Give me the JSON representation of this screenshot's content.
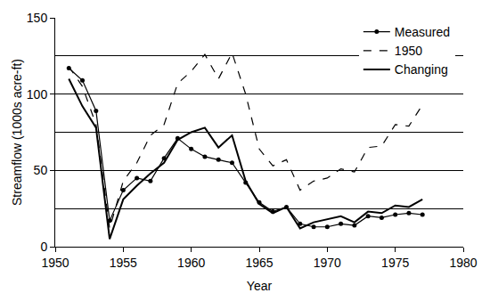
{
  "chart_data": {
    "type": "line",
    "x_label": "Year",
    "y_label": "Streamflow (1000s acre-ft)",
    "x": [
      1951,
      1952,
      1953,
      1954,
      1955,
      1956,
      1957,
      1958,
      1959,
      1960,
      1961,
      1962,
      1963,
      1964,
      1965,
      1966,
      1967,
      1968,
      1969,
      1970,
      1971,
      1972,
      1973,
      1974,
      1975,
      1976,
      1977
    ],
    "series": [
      {
        "name": "Measured",
        "color": "#000000",
        "line_style": "solid",
        "marker": "circle",
        "values": [
          117,
          109,
          89,
          17,
          37,
          45,
          43,
          58,
          71,
          64,
          59,
          57,
          55,
          42,
          29,
          23,
          26,
          15,
          13,
          13,
          15,
          14,
          20,
          19,
          21,
          22,
          21
        ]
      },
      {
        "name": "1950",
        "color": "#000000",
        "line_style": "dashed",
        "values": [
          118,
          105,
          80,
          12,
          43,
          55,
          73,
          80,
          107,
          115,
          126,
          110,
          127,
          100,
          64,
          53,
          57,
          37,
          43,
          45,
          51,
          49,
          65,
          66,
          80,
          79,
          93
        ]
      },
      {
        "name": "Changing",
        "color": "#000000",
        "line_style": "solid",
        "values": [
          110,
          92,
          78,
          5,
          31,
          40,
          48,
          55,
          70,
          75,
          78,
          65,
          73,
          43,
          28,
          22,
          26,
          12,
          16,
          18,
          20,
          16,
          23,
          22,
          27,
          26,
          31
        ]
      }
    ],
    "xlim": [
      1950,
      1980
    ],
    "xticks": [
      1950,
      1955,
      1960,
      1965,
      1970,
      1975,
      1980
    ],
    "ylim": [
      0,
      150
    ],
    "yticks": [
      0,
      50,
      100,
      150
    ],
    "grid": true,
    "legend": "top right"
  }
}
